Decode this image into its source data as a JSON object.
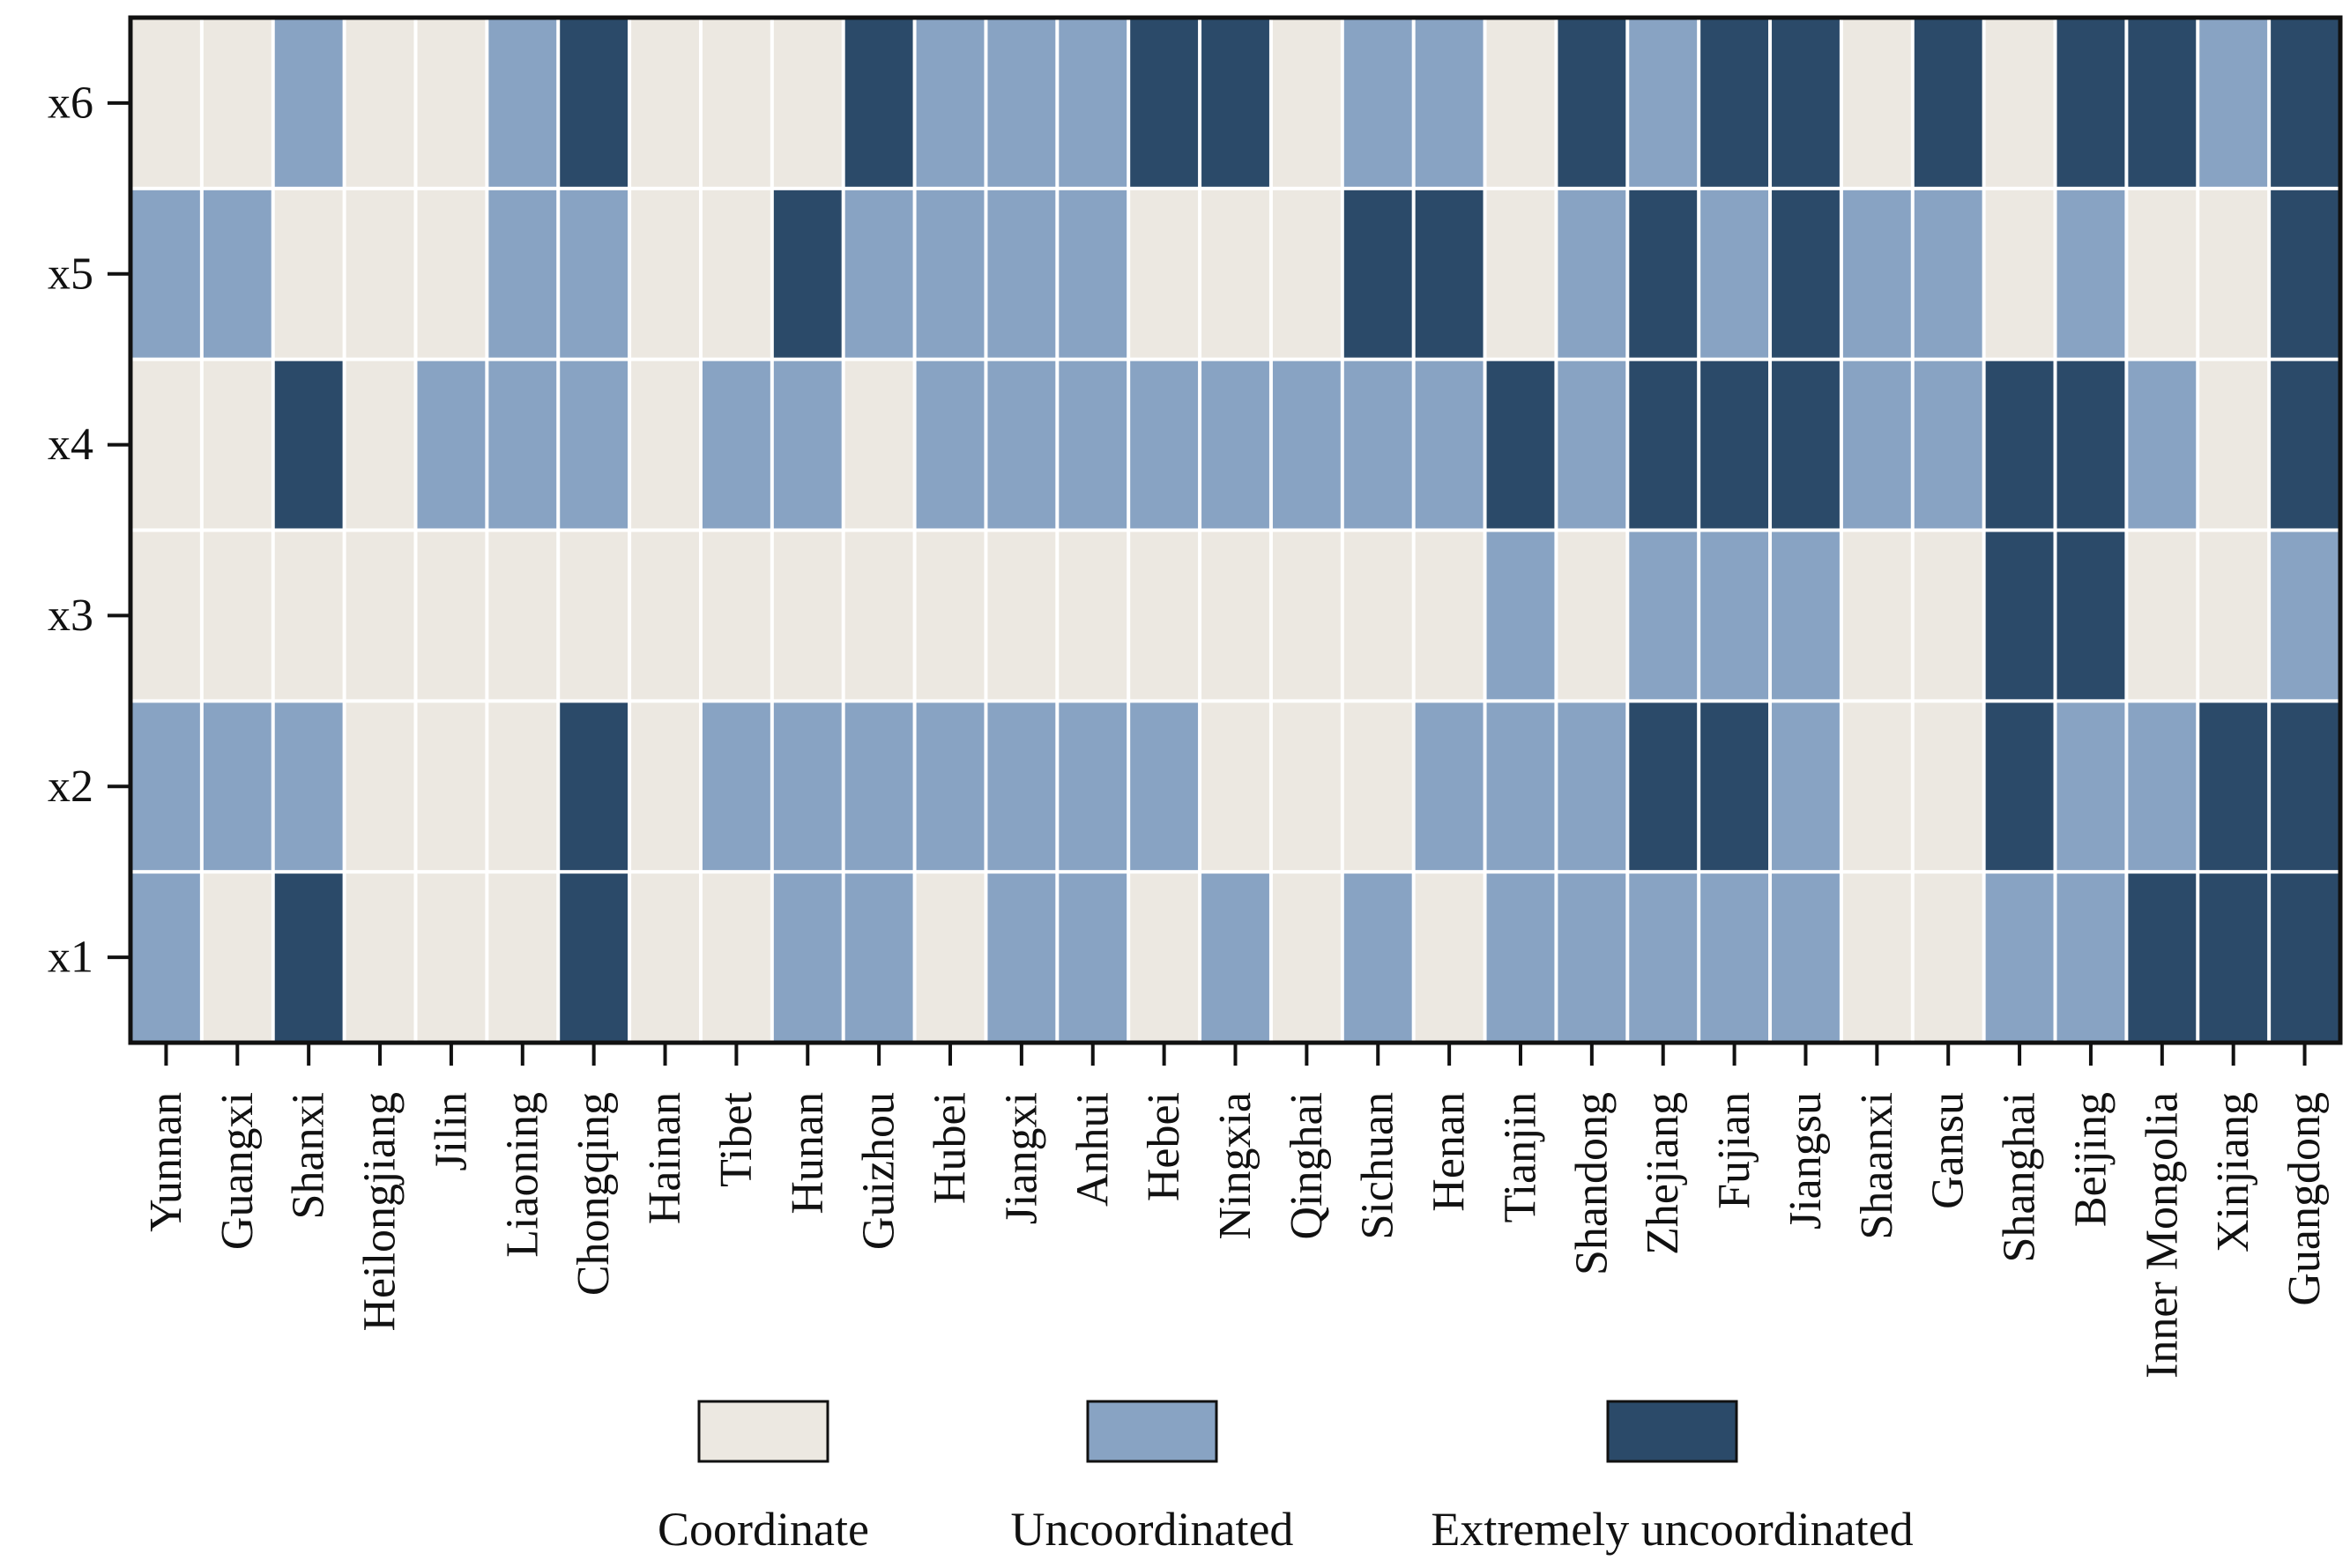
{
  "chart_data": {
    "type": "heatmap",
    "title": "",
    "xlabel": "",
    "ylabel": "",
    "x_categories": [
      "Yunnan",
      "Guangxi",
      "Shanxi",
      "Heilongjiang",
      "Jilin",
      "Liaoning",
      "Chongqing",
      "Hainan",
      "Tibet",
      "Hunan",
      "Guizhou",
      "Hubei",
      "Jiangxi",
      "Anhui",
      "Hebei",
      "Ningxia",
      "Qinghai",
      "Sichuan",
      "Henan",
      "Tianjin",
      "Shandong",
      "Zhejiang",
      "Fujian",
      "Jiangsu",
      "Shaanxi",
      "Gansu",
      "Shanghai",
      "Beijing",
      "Inner Mongolia",
      "Xinjiang",
      "Guangdong"
    ],
    "y_categories": [
      "x6",
      "x5",
      "x4",
      "x3",
      "x2",
      "x1"
    ],
    "levels": [
      {
        "label": "Coordinate",
        "color": "#ece8e1"
      },
      {
        "label": "Uncoordinated",
        "color": "#88a3c3"
      },
      {
        "label": "Extremely uncoordinated",
        "color": "#2b4a69"
      }
    ],
    "values": [
      [
        0,
        0,
        1,
        0,
        0,
        1,
        2,
        0,
        0,
        0,
        2,
        1,
        1,
        1,
        2,
        2,
        0,
        1,
        1,
        0,
        2,
        1,
        2,
        2,
        0,
        2,
        0,
        2,
        2,
        1,
        2
      ],
      [
        1,
        1,
        0,
        0,
        0,
        1,
        1,
        0,
        0,
        2,
        1,
        1,
        1,
        1,
        0,
        0,
        0,
        2,
        2,
        0,
        1,
        2,
        1,
        2,
        1,
        1,
        0,
        1,
        0,
        0,
        2
      ],
      [
        0,
        0,
        2,
        0,
        1,
        1,
        1,
        0,
        1,
        1,
        0,
        1,
        1,
        1,
        1,
        1,
        1,
        1,
        1,
        2,
        1,
        2,
        2,
        2,
        1,
        1,
        2,
        2,
        1,
        0,
        2
      ],
      [
        0,
        0,
        0,
        0,
        0,
        0,
        0,
        0,
        0,
        0,
        0,
        0,
        0,
        0,
        0,
        0,
        0,
        0,
        0,
        1,
        0,
        1,
        1,
        1,
        0,
        0,
        2,
        2,
        0,
        0,
        1
      ],
      [
        1,
        1,
        1,
        0,
        0,
        0,
        2,
        0,
        1,
        1,
        1,
        1,
        1,
        1,
        1,
        0,
        0,
        0,
        1,
        1,
        1,
        2,
        2,
        1,
        0,
        0,
        2,
        1,
        1,
        2,
        2
      ],
      [
        1,
        0,
        2,
        0,
        0,
        0,
        2,
        0,
        0,
        1,
        1,
        0,
        1,
        1,
        0,
        1,
        0,
        1,
        0,
        1,
        1,
        1,
        1,
        1,
        0,
        0,
        1,
        1,
        2,
        2,
        2
      ]
    ],
    "legend_position": "bottom",
    "grid": false
  }
}
